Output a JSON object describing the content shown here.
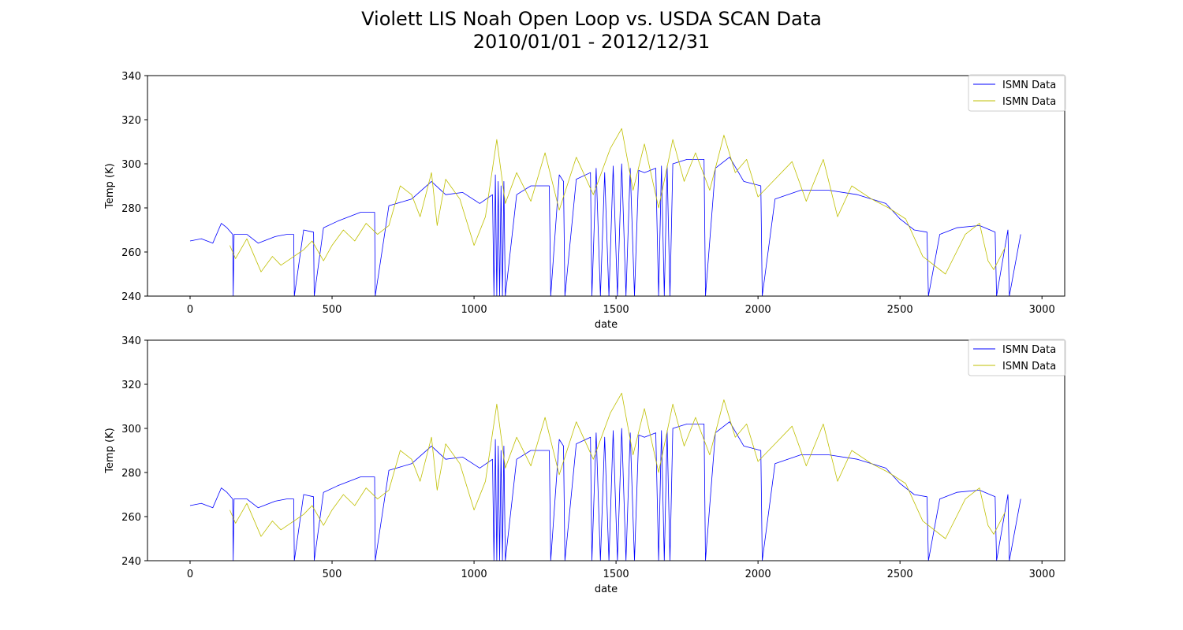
{
  "figure": {
    "title_line1": "Violett LIS Noah Open Loop vs. USDA SCAN Data",
    "title_line2": "2010/01/01 - 2012/12/31"
  },
  "style": {
    "series_colors": [
      "#0000ff",
      "#bfbf00"
    ]
  },
  "chart_data": [
    {
      "type": "line",
      "xlabel": "date",
      "ylabel": "Temp (K)",
      "xlim": [
        -150,
        3080
      ],
      "ylim": [
        240,
        340
      ],
      "xticks": [
        0,
        500,
        1000,
        1500,
        2000,
        2500,
        3000
      ],
      "yticks": [
        240,
        260,
        280,
        300,
        320,
        340
      ],
      "legend_position": "upper right",
      "grid": false,
      "series": [
        {
          "name": "ISMN Data",
          "color": "#0000ff",
          "x": [
            0,
            40,
            80,
            110,
            130,
            150,
            152,
            155,
            200,
            240,
            300,
            340,
            365,
            367,
            400,
            435,
            437,
            470,
            520,
            600,
            650,
            652,
            700,
            780,
            850,
            900,
            960,
            1020,
            1065,
            1070,
            1075,
            1080,
            1085,
            1090,
            1095,
            1100,
            1105,
            1110,
            1150,
            1200,
            1265,
            1270,
            1300,
            1315,
            1320,
            1360,
            1410,
            1415,
            1430,
            1445,
            1460,
            1475,
            1490,
            1505,
            1520,
            1535,
            1550,
            1565,
            1580,
            1600,
            1640,
            1650,
            1660,
            1670,
            1680,
            1690,
            1700,
            1750,
            1810,
            1815,
            1850,
            1900,
            1950,
            2010,
            2015,
            2060,
            2150,
            2250,
            2350,
            2450,
            2500,
            2550,
            2595,
            2600,
            2640,
            2700,
            2780,
            2835,
            2840,
            2880,
            2885,
            2925
          ],
          "y": [
            265,
            266,
            264,
            273,
            271,
            268,
            240,
            268,
            268,
            264,
            267,
            268,
            268,
            240,
            270,
            269,
            240,
            271,
            274,
            278,
            278,
            240,
            281,
            284,
            292,
            286,
            287,
            282,
            286,
            240,
            295,
            240,
            292,
            240,
            290,
            240,
            292,
            240,
            286,
            290,
            290,
            240,
            295,
            292,
            240,
            293,
            296,
            240,
            298,
            240,
            296,
            240,
            299,
            240,
            300,
            240,
            298,
            240,
            297,
            296,
            298,
            240,
            299,
            240,
            299,
            240,
            300,
            302,
            302,
            240,
            298,
            303,
            292,
            290,
            240,
            284,
            288,
            288,
            286,
            282,
            275,
            270,
            269,
            240,
            268,
            271,
            272,
            269,
            240,
            270,
            240,
            268
          ]
        },
        {
          "name": "ISMN Data",
          "color": "#bfbf00",
          "x": [
            140,
            160,
            200,
            250,
            290,
            320,
            400,
            430,
            470,
            500,
            540,
            580,
            620,
            660,
            700,
            740,
            780,
            810,
            850,
            870,
            900,
            950,
            1000,
            1040,
            1080,
            1110,
            1150,
            1200,
            1250,
            1300,
            1360,
            1420,
            1480,
            1520,
            1560,
            1600,
            1650,
            1700,
            1740,
            1780,
            1830,
            1880,
            1920,
            1960,
            2000,
            2060,
            2120,
            2170,
            2230,
            2280,
            2330,
            2400,
            2460,
            2520,
            2580,
            2660,
            2730,
            2780,
            2810,
            2830,
            2870
          ],
          "y": [
            263,
            257,
            266,
            251,
            258,
            254,
            261,
            265,
            256,
            263,
            270,
            265,
            273,
            268,
            272,
            290,
            286,
            276,
            296,
            272,
            293,
            284,
            263,
            276,
            311,
            282,
            296,
            283,
            305,
            279,
            303,
            286,
            307,
            316,
            288,
            309,
            280,
            311,
            292,
            305,
            288,
            313,
            296,
            302,
            285,
            293,
            301,
            283,
            302,
            276,
            290,
            284,
            280,
            275,
            258,
            250,
            268,
            273,
            256,
            252,
            262
          ]
        }
      ]
    },
    {
      "type": "line",
      "xlabel": "date",
      "ylabel": "Temp (K)",
      "xlim": [
        -150,
        3080
      ],
      "ylim": [
        240,
        340
      ],
      "xticks": [
        0,
        500,
        1000,
        1500,
        2000,
        2500,
        3000
      ],
      "yticks": [
        240,
        260,
        280,
        300,
        320,
        340
      ],
      "legend_position": "upper right",
      "grid": false,
      "series": [
        {
          "name": "ISMN Data",
          "color": "#0000ff",
          "x": [
            0,
            40,
            80,
            110,
            130,
            150,
            152,
            155,
            200,
            240,
            300,
            340,
            365,
            367,
            400,
            435,
            437,
            470,
            520,
            600,
            650,
            652,
            700,
            780,
            850,
            900,
            960,
            1020,
            1065,
            1070,
            1075,
            1080,
            1085,
            1090,
            1095,
            1100,
            1105,
            1110,
            1150,
            1200,
            1265,
            1270,
            1300,
            1315,
            1320,
            1360,
            1410,
            1415,
            1430,
            1445,
            1460,
            1475,
            1490,
            1505,
            1520,
            1535,
            1550,
            1565,
            1580,
            1600,
            1640,
            1650,
            1660,
            1670,
            1680,
            1690,
            1700,
            1750,
            1810,
            1815,
            1850,
            1900,
            1950,
            2010,
            2015,
            2060,
            2150,
            2250,
            2350,
            2450,
            2500,
            2550,
            2595,
            2600,
            2640,
            2700,
            2780,
            2835,
            2840,
            2880,
            2885,
            2925
          ],
          "y": [
            265,
            266,
            264,
            273,
            271,
            268,
            240,
            268,
            268,
            264,
            267,
            268,
            268,
            240,
            270,
            269,
            240,
            271,
            274,
            278,
            278,
            240,
            281,
            284,
            292,
            286,
            287,
            282,
            286,
            240,
            295,
            240,
            292,
            240,
            290,
            240,
            292,
            240,
            286,
            290,
            290,
            240,
            295,
            292,
            240,
            293,
            296,
            240,
            298,
            240,
            296,
            240,
            299,
            240,
            300,
            240,
            298,
            240,
            297,
            296,
            298,
            240,
            299,
            240,
            299,
            240,
            300,
            302,
            302,
            240,
            298,
            303,
            292,
            290,
            240,
            284,
            288,
            288,
            286,
            282,
            275,
            270,
            269,
            240,
            268,
            271,
            272,
            269,
            240,
            270,
            240,
            268
          ]
        },
        {
          "name": "ISMN Data",
          "color": "#bfbf00",
          "x": [
            140,
            160,
            200,
            250,
            290,
            320,
            400,
            430,
            470,
            500,
            540,
            580,
            620,
            660,
            700,
            740,
            780,
            810,
            850,
            870,
            900,
            950,
            1000,
            1040,
            1080,
            1110,
            1150,
            1200,
            1250,
            1300,
            1360,
            1420,
            1480,
            1520,
            1560,
            1600,
            1650,
            1700,
            1740,
            1780,
            1830,
            1880,
            1920,
            1960,
            2000,
            2060,
            2120,
            2170,
            2230,
            2280,
            2330,
            2400,
            2460,
            2520,
            2580,
            2660,
            2730,
            2780,
            2810,
            2830,
            2870
          ],
          "y": [
            263,
            257,
            266,
            251,
            258,
            254,
            261,
            265,
            256,
            263,
            270,
            265,
            273,
            268,
            272,
            290,
            286,
            276,
            296,
            272,
            293,
            284,
            263,
            276,
            311,
            282,
            296,
            283,
            305,
            279,
            303,
            286,
            307,
            316,
            288,
            309,
            280,
            311,
            292,
            305,
            288,
            313,
            296,
            302,
            285,
            293,
            301,
            283,
            302,
            276,
            290,
            284,
            280,
            275,
            258,
            250,
            268,
            273,
            256,
            252,
            262
          ]
        }
      ]
    }
  ]
}
